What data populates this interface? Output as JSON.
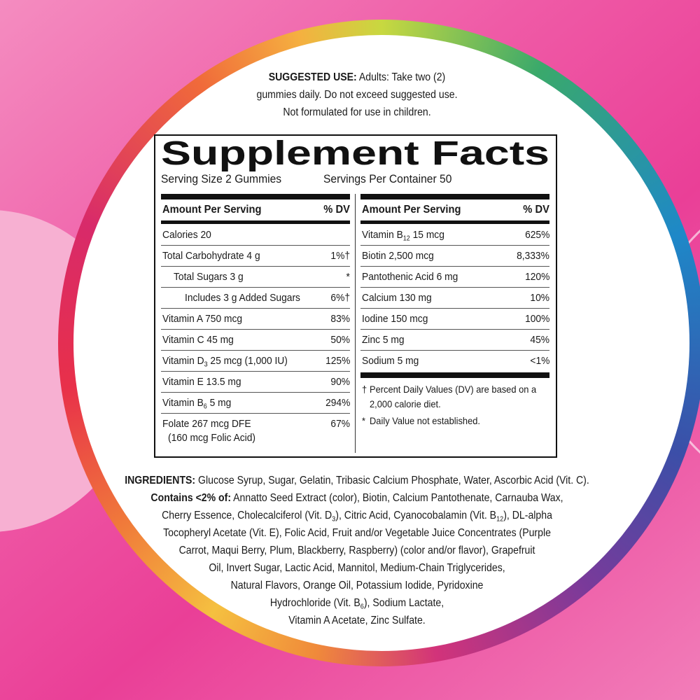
{
  "suggested_use": {
    "lines": [
      [
        {
          "text": "SUGGESTED USE:",
          "style": "bold"
        },
        {
          "text": " Adults: Take two (2)"
        }
      ],
      [
        {
          "text": "gummies daily. Do not exceed suggested use."
        }
      ],
      [
        {
          "text": "Not formulated for use in children."
        }
      ]
    ]
  },
  "facts": {
    "title": "Supplement Facts",
    "serving_size": "Serving Size 2 Gummies",
    "servings_per_container": "Servings Per Container 50",
    "columns": [
      {
        "header": [
          "Amount Per Serving",
          "% DV"
        ],
        "rows": [
          {
            "name": "Calories 20"
          },
          {
            "name": "Total Carbohydrate 4 g",
            "dv": "1%†"
          },
          {
            "name": "Total Sugars 3 g",
            "dv": "*",
            "indent": 1
          },
          {
            "name": "Includes 3 g Added Sugars",
            "dv": "6%†",
            "indent": 2
          },
          {
            "name": "Vitamin A 750 mcg",
            "dv": "83%"
          },
          {
            "name": "Vitamin C 45 mg",
            "dv": "50%"
          },
          {
            "name": [
              {
                "text": "Vitamin D"
              },
              {
                "text": "3",
                "style": "sub"
              },
              {
                "text": " 25 mcg (1,000 IU)"
              }
            ],
            "dv": "125%"
          },
          {
            "name": "Vitamin E 13.5 mg",
            "dv": "90%"
          },
          {
            "name": [
              {
                "text": "Vitamin B"
              },
              {
                "text": "6",
                "style": "sub"
              },
              {
                "text": " 5 mg"
              }
            ],
            "dv": "294%"
          },
          {
            "name": "Folate 267 mcg DFE",
            "note": "(160 mcg Folic Acid)",
            "dv": "67%"
          }
        ]
      },
      {
        "header": [
          "Amount Per Serving",
          "% DV"
        ],
        "rows": [
          {
            "name": [
              {
                "text": "Vitamin B"
              },
              {
                "text": "12",
                "style": "sub"
              },
              {
                "text": " 15 mcg"
              }
            ],
            "dv": "625%"
          },
          {
            "name": "Biotin 2,500 mcg",
            "dv": "8,333%"
          },
          {
            "name": "Pantothenic Acid 6 mg",
            "dv": "120%"
          },
          {
            "name": "Calcium 130 mg",
            "dv": "10%"
          },
          {
            "name": "Iodine 150 mcg",
            "dv": "100%"
          },
          {
            "name": "Zinc 5 mg",
            "dv": "45%"
          },
          {
            "name": "Sodium 5 mg",
            "dv": "<1%"
          }
        ],
        "footnotes": [
          [
            "†",
            "Percent Daily Values (DV) are based on a",
            "2,000 calorie diet."
          ],
          [
            "*",
            "Daily Value not established."
          ]
        ]
      }
    ]
  },
  "ingredients": {
    "lines": [
      [
        {
          "text": "INGREDIENTS:",
          "style": "bold"
        },
        {
          "text": " Glucose Syrup, Sugar, Gelatin, Tribasic Calcium Phosphate, Water, Ascorbic Acid (Vit. C)."
        }
      ],
      [
        {
          "text": "Contains <2% of:",
          "style": "bold"
        },
        {
          "text": " Annatto Seed Extract (color), Biotin, Calcium Pantothenate, Carnauba Wax,"
        }
      ],
      [
        {
          "text": "Cherry Essence, Cholecalciferol (Vit. D"
        },
        {
          "text": "3",
          "style": "sub"
        },
        {
          "text": "), Citric Acid, Cyanocobalamin (Vit. B"
        },
        {
          "text": "12",
          "style": "sub"
        },
        {
          "text": "), DL-alpha"
        }
      ],
      [
        {
          "text": "Tocopheryl Acetate (Vit. E), Folic Acid, Fruit and/or Vegetable Juice Concentrates (Purple"
        }
      ],
      [
        {
          "text": "Carrot, Maqui Berry, Plum, Blackberry, Raspberry) (color and/or flavor), Grapefruit"
        }
      ],
      [
        {
          "text": "Oil, Invert Sugar, Lactic Acid, Mannitol, Medium-Chain Triglycerides,"
        }
      ],
      [
        {
          "text": "Natural Flavors, Orange Oil, Potassium Iodide, Pyridoxine"
        }
      ],
      [
        {
          "text": "Hydrochloride (Vit. B"
        },
        {
          "text": "6",
          "style": "sub"
        },
        {
          "text": "), Sodium Lactate,"
        }
      ],
      [
        {
          "text": "Vitamin A Acetate, Zinc Sulfate."
        }
      ]
    ]
  }
}
